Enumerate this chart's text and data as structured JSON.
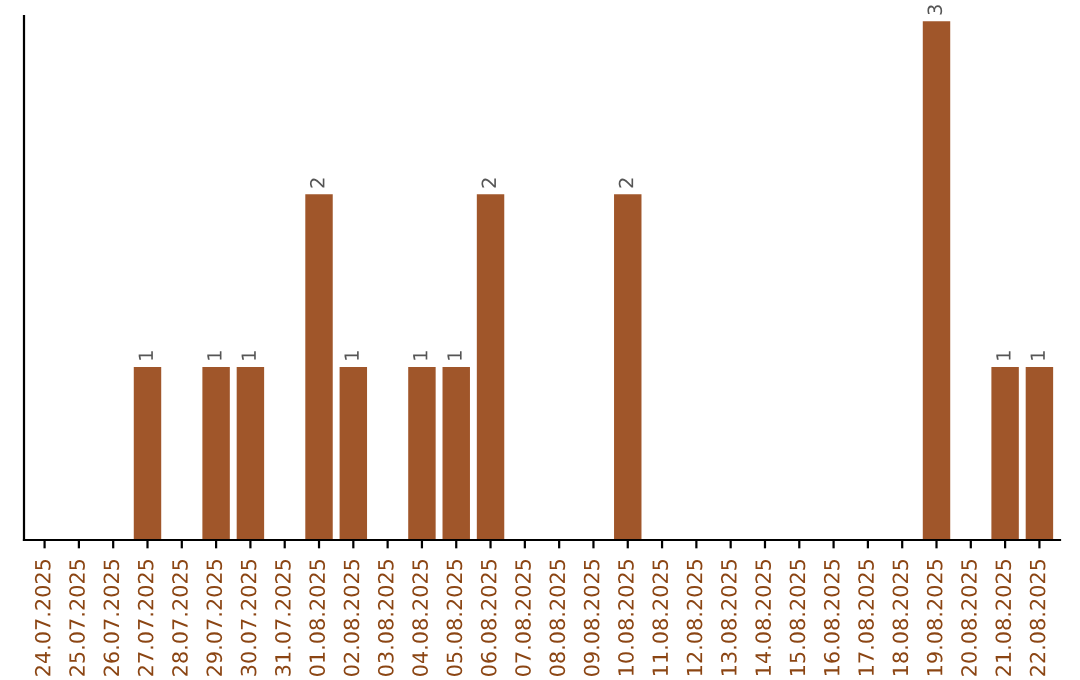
{
  "chart_data": {
    "type": "bar",
    "categories": [
      "24.07.2025",
      "25.07.2025",
      "26.07.2025",
      "27.07.2025",
      "28.07.2025",
      "29.07.2025",
      "30.07.2025",
      "31.07.2025",
      "01.08.2025",
      "02.08.2025",
      "03.08.2025",
      "04.08.2025",
      "05.08.2025",
      "06.08.2025",
      "07.08.2025",
      "08.08.2025",
      "09.08.2025",
      "10.08.2025",
      "11.08.2025",
      "12.08.2025",
      "13.08.2025",
      "14.08.2025",
      "15.08.2025",
      "16.08.2025",
      "17.08.2025",
      "18.08.2025",
      "19.08.2025",
      "20.08.2025",
      "21.08.2025",
      "22.08.2025"
    ],
    "values": [
      0,
      0,
      0,
      1,
      0,
      1,
      1,
      0,
      2,
      1,
      0,
      1,
      1,
      2,
      0,
      0,
      0,
      2,
      0,
      0,
      0,
      0,
      0,
      0,
      0,
      0,
      3,
      0,
      1,
      1
    ],
    "value_labels": [
      null,
      null,
      null,
      "1",
      null,
      "1",
      "1",
      null,
      "2",
      "1",
      null,
      "1",
      "1",
      "2",
      null,
      null,
      null,
      "2",
      null,
      null,
      null,
      null,
      null,
      null,
      null,
      null,
      "3",
      null,
      "1",
      "1"
    ],
    "color": "#a0562a",
    "ylim": [
      0,
      3.03
    ],
    "tick_labels": "x",
    "grid": false,
    "legend": false
  }
}
